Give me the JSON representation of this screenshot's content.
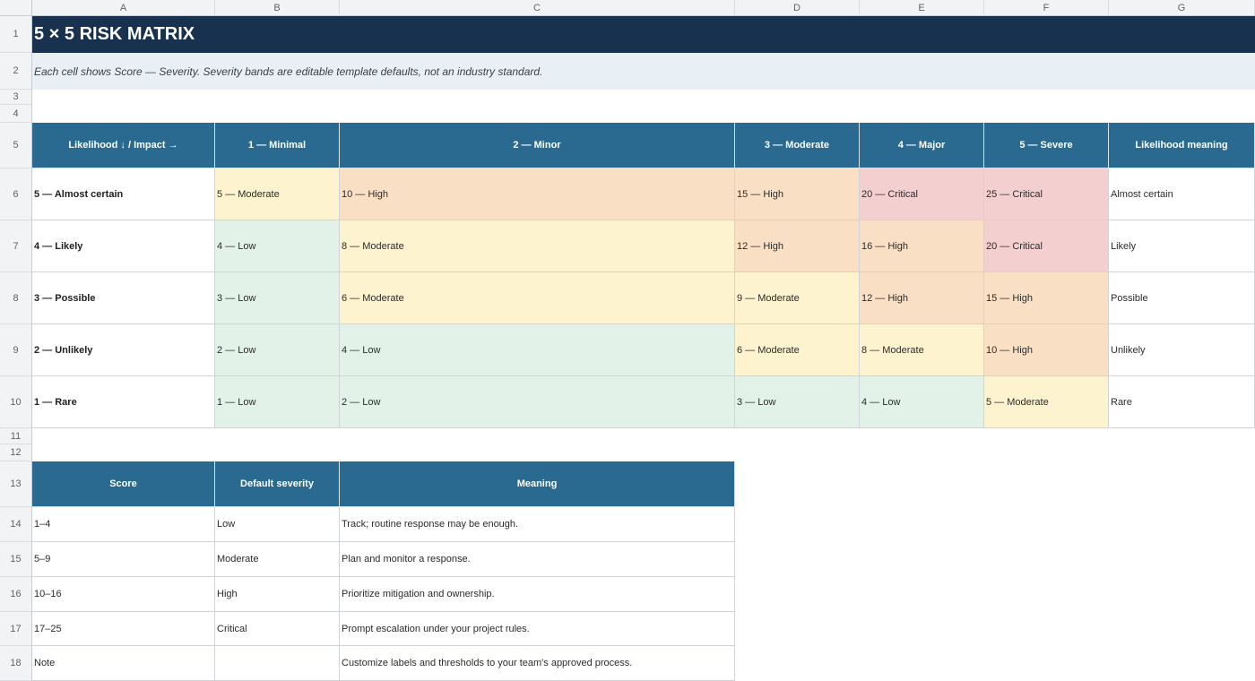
{
  "columns": [
    "A",
    "B",
    "C",
    "D",
    "E",
    "F",
    "G"
  ],
  "rows": [
    "1",
    "2",
    "3",
    "4",
    "5",
    "6",
    "7",
    "8",
    "9",
    "10",
    "11",
    "12",
    "13",
    "14",
    "15",
    "16",
    "17",
    "18"
  ],
  "title": "5 × 5 RISK MATRIX",
  "subtitle": "Each cell shows Score — Severity. Severity bands are editable template defaults, not an industry standard.",
  "matrix": {
    "corner_label": "Likelihood ↓ / Impact →",
    "impact_headers": [
      "1 — Minimal",
      "2 — Minor",
      "3 — Moderate",
      "4 — Major",
      "5 — Severe"
    ],
    "meaning_header": "Likelihood meaning",
    "rows": [
      {
        "likelihood": "5 — Almost certain",
        "cells": [
          "5 — Moderate",
          "10 — High",
          "15 — High",
          "20 — Critical",
          "25 — Critical"
        ],
        "meaning": "Almost certain"
      },
      {
        "likelihood": "4 — Likely",
        "cells": [
          "4 — Low",
          "8 — Moderate",
          "12 — High",
          "16 — High",
          "20 — Critical"
        ],
        "meaning": "Likely"
      },
      {
        "likelihood": "3 — Possible",
        "cells": [
          "3 — Low",
          "6 — Moderate",
          "9 — Moderate",
          "12 — High",
          "15 — High"
        ],
        "meaning": "Possible"
      },
      {
        "likelihood": "2 — Unlikely",
        "cells": [
          "2 — Low",
          "4 — Low",
          "6 — Moderate",
          "8 — Moderate",
          "10 — High"
        ],
        "meaning": "Unlikely"
      },
      {
        "likelihood": "1 — Rare",
        "cells": [
          "1 — Low",
          "2 — Low",
          "3 — Low",
          "4 — Low",
          "5 — Moderate"
        ],
        "meaning": "Rare"
      }
    ]
  },
  "legend": {
    "headers": [
      "Score",
      "Default severity",
      "Meaning"
    ],
    "rows": [
      {
        "score": "1–4",
        "severity": "Low",
        "meaning": "Track; routine response may be enough."
      },
      {
        "score": "5–9",
        "severity": "Moderate",
        "meaning": "Plan and monitor a response."
      },
      {
        "score": "10–16",
        "severity": "High",
        "meaning": "Prioritize mitigation and ownership."
      },
      {
        "score": "17–25",
        "severity": "Critical",
        "meaning": "Prompt escalation under your project rules."
      },
      {
        "score": "Note",
        "severity": "",
        "meaning": "Customize labels and thresholds to your team's approved process."
      }
    ]
  },
  "colors": {
    "title_bg": "#18314f",
    "header_bg": "#2a6a91",
    "subtitle_bg": "#e8f0f6",
    "low": "#e3f2e8",
    "moderate": "#fdf3cf",
    "high": "#f9e0c4",
    "critical": "#f4cfd0"
  }
}
